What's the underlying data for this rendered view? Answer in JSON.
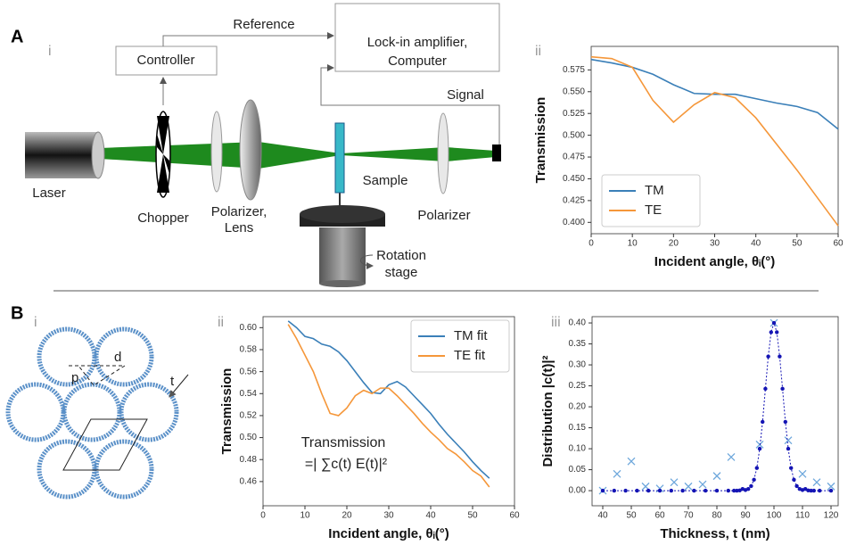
{
  "labels": {
    "A": "A",
    "A_i": "i",
    "A_ii": "ii",
    "B": "B",
    "B_i": "i",
    "B_ii": "ii",
    "B_iii": "iii"
  },
  "setup": {
    "reference": "Reference",
    "controller": "Controller",
    "lockin": [
      "Lock-in amplifier,",
      "Computer"
    ],
    "signal": "Signal",
    "laser": "Laser",
    "chopper": "Chopper",
    "polarizer_lens": [
      "Polarizer,",
      "Lens"
    ],
    "sample": "Sample",
    "polarizer": "Polarizer",
    "rotation_stage": [
      "Rotation",
      "stage"
    ]
  },
  "lattice": {
    "d": "d",
    "p": "p",
    "t": "t"
  },
  "chart_data": [
    {
      "type": "line",
      "xlabel": "Incident angle, θᵢ(°)",
      "ylabel": "Transmission",
      "legend": "lower left",
      "x": [
        0,
        5,
        10,
        15,
        20,
        25,
        30,
        35,
        40,
        45,
        50,
        55,
        60
      ],
      "series": [
        {
          "name": "TM",
          "color": "#3a7fb8",
          "values": [
            0.587,
            0.583,
            0.578,
            0.57,
            0.558,
            0.548,
            0.547,
            0.547,
            0.542,
            0.537,
            0.533,
            0.526,
            0.507
          ]
        },
        {
          "name": "TE",
          "color": "#f5973a",
          "values": [
            0.59,
            0.588,
            0.578,
            0.54,
            0.515,
            0.535,
            0.549,
            0.543,
            0.52,
            0.49,
            0.46,
            0.428,
            0.396
          ]
        }
      ],
      "xlim": [
        0,
        60
      ],
      "xticks": [
        0,
        10,
        20,
        30,
        40,
        50,
        60
      ],
      "ylim": [
        0.387,
        0.602
      ],
      "yticks": [
        {
          "value": 0.4,
          "label": "0.400"
        },
        0.425,
        {
          "value": 0.45,
          "label": "0.450"
        },
        0.475,
        {
          "value": 0.5,
          "label": "0.500"
        },
        0.525,
        {
          "value": 0.55,
          "label": "0.550"
        },
        0.575
      ]
    },
    {
      "type": "line",
      "xlabel": "Incident angle, θᵢ(°)",
      "ylabel": "Transmission",
      "legend": "upper right",
      "annotations": [
        "Transmission",
        "=| ∑c(t) E(t)|²"
      ],
      "x": [
        6,
        8,
        10,
        12,
        14,
        16,
        18,
        20,
        22,
        24,
        26,
        28,
        30,
        32,
        34,
        36,
        38,
        40,
        42,
        44,
        46,
        48,
        50,
        52,
        54
      ],
      "series": [
        {
          "name": "TM fit",
          "color": "#3a7fb8",
          "values": [
            0.606,
            0.6,
            0.592,
            0.59,
            0.585,
            0.583,
            0.578,
            0.57,
            0.56,
            0.55,
            0.541,
            0.54,
            0.548,
            0.551,
            0.546,
            0.538,
            0.53,
            0.522,
            0.512,
            0.503,
            0.495,
            0.487,
            0.478,
            0.47,
            0.463
          ]
        },
        {
          "name": "TE fit",
          "color": "#f5973a",
          "values": [
            0.603,
            0.59,
            0.575,
            0.56,
            0.54,
            0.522,
            0.52,
            0.527,
            0.538,
            0.543,
            0.54,
            0.545,
            0.545,
            0.538,
            0.53,
            0.522,
            0.513,
            0.505,
            0.498,
            0.49,
            0.485,
            0.478,
            0.47,
            0.465,
            0.455
          ]
        }
      ],
      "xlim": [
        0,
        60
      ],
      "xticks": [
        0,
        10,
        20,
        30,
        40,
        50,
        60
      ],
      "ylim": [
        0.438,
        0.61
      ],
      "yticks": [
        0.46,
        0.48,
        {
          "value": 0.5,
          "label": "0.50"
        },
        0.52,
        0.54,
        0.56,
        0.58,
        {
          "value": 0.6,
          "label": "0.60"
        }
      ]
    },
    {
      "type": "line",
      "xlabel": "Thickness, t (nm)",
      "ylabel": "Distribution |c(t)|²",
      "series": [
        {
          "color": "#6fa8dc",
          "marker": "x",
          "x": [
            40,
            45,
            50,
            55,
            60,
            65,
            70,
            75,
            80,
            85,
            95,
            100,
            105,
            110,
            115,
            120
          ],
          "values": [
            0.0,
            0.04,
            0.07,
            0.01,
            0.005,
            0.02,
            0.01,
            0.015,
            0.035,
            0.08,
            0.11,
            0.4,
            0.12,
            0.04,
            0.02,
            0.01
          ]
        },
        {
          "color": "#1414b4",
          "marker": "dot-line",
          "x": [
            40,
            44,
            48,
            52,
            56,
            60,
            64,
            68,
            72,
            76,
            80,
            84,
            86,
            87,
            88,
            89,
            90,
            91,
            92,
            93,
            94,
            95,
            96,
            97,
            98,
            99,
            100,
            101,
            102,
            103,
            104,
            105,
            106,
            107,
            108,
            109,
            110,
            111,
            112,
            113,
            114,
            116,
            120
          ],
          "values": [
            0,
            0,
            0,
            0,
            0,
            0,
            0,
            0,
            0,
            0,
            0,
            0,
            0,
            0,
            0.0005,
            0.004,
            0.0015,
            0.004,
            0.011,
            0.026,
            0.054,
            0.1,
            0.164,
            0.243,
            0.32,
            0.378,
            0.4,
            0.378,
            0.32,
            0.243,
            0.164,
            0.1,
            0.054,
            0.026,
            0.011,
            0.004,
            0.0015,
            0.004,
            0.0005,
            0,
            0,
            0,
            0
          ]
        }
      ],
      "xlim": [
        36.25,
        122.5
      ],
      "xticks": [
        40,
        50,
        60,
        70,
        80,
        90,
        100,
        110,
        120
      ],
      "ylim": [
        -0.036,
        0.415
      ],
      "yticks": [
        {
          "value": 0,
          "label": "0.00"
        },
        0.05,
        {
          "value": 0.1,
          "label": "0.10"
        },
        0.15,
        {
          "value": 0.2,
          "label": "0.20"
        },
        0.25,
        {
          "value": 0.3,
          "label": "0.30"
        },
        0.35,
        {
          "value": 0.4,
          "label": "0.40"
        }
      ]
    }
  ]
}
